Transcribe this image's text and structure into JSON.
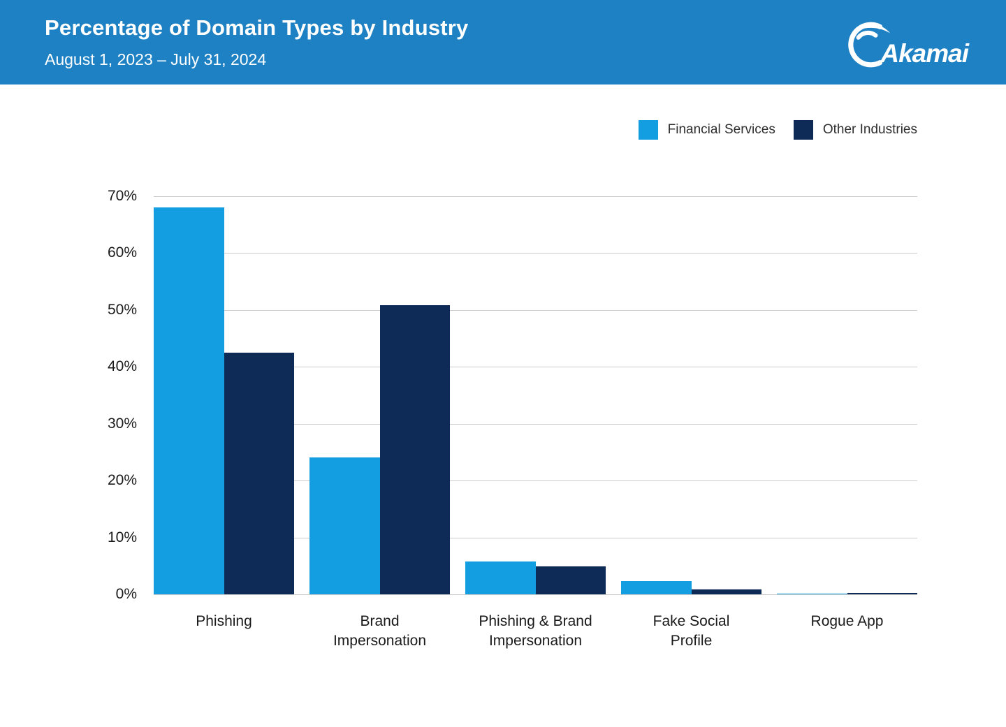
{
  "header": {
    "title": "Percentage of Domain Types by Industry",
    "subtitle": "August 1, 2023 – July 31, 2024",
    "logo_text": "Akamai",
    "background_color": "#1e81c4"
  },
  "chart_data": {
    "type": "bar",
    "title": "Percentage of Domain Types by Industry",
    "categories": [
      "Phishing",
      "Brand\nImpersonation",
      "Phishing & Brand\nImpersonation",
      "Fake Social\nProfile",
      "Rogue App"
    ],
    "series": [
      {
        "name": "Financial Services",
        "color": "#129ee0",
        "values": [
          68.0,
          24.1,
          5.8,
          2.3,
          0.1
        ]
      },
      {
        "name": "Other Industries",
        "color": "#0e2a56",
        "values": [
          42.5,
          50.9,
          4.9,
          0.9,
          0.3
        ]
      }
    ],
    "xlabel": "",
    "ylabel": "",
    "ylim": [
      0,
      70
    ],
    "y_ticks": [
      "70%",
      "60%",
      "50%",
      "40%",
      "30%",
      "20%",
      "10%",
      "0%"
    ],
    "grid": true,
    "gridline_color": "#cbcbcb",
    "legend_position": "top-right"
  }
}
